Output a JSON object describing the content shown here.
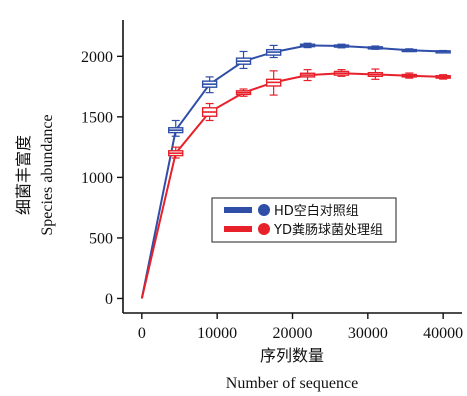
{
  "chart_data": {
    "type": "line",
    "ylabel_cn": "细菌丰富度",
    "ylabel_en": "Species abundance",
    "xlabel_cn": "序列数量",
    "xlabel_en": "Number of sequence",
    "xlim": [
      -2500,
      42500
    ],
    "ylim": [
      -120,
      2300
    ],
    "xticks": [
      0,
      10000,
      20000,
      30000,
      40000
    ],
    "xtick_labels": [
      "0",
      "10000",
      "20000",
      "30000",
      "40000"
    ],
    "yticks": [
      0,
      500,
      1000,
      1500,
      2000
    ],
    "ytick_labels": [
      "0",
      "500",
      "1000",
      "1500",
      "2000"
    ],
    "legend_position": "center-right",
    "series": [
      {
        "name": "HD空白对照组",
        "color": "#2e4ea8",
        "x": [
          0,
          4500,
          9000,
          13500,
          17500,
          22000,
          26500,
          31000,
          35500,
          40000
        ],
        "y": [
          0,
          1390,
          1770,
          1960,
          2035,
          2090,
          2085,
          2070,
          2050,
          2040
        ],
        "box_low": [
          0,
          1370,
          1745,
          1935,
          2010,
          2080,
          2078,
          2063,
          2044,
          2035
        ],
        "box_high": [
          0,
          1410,
          1795,
          1985,
          2055,
          2100,
          2093,
          2078,
          2056,
          2045
        ],
        "whisker_low": [
          0,
          1340,
          1700,
          1900,
          1990,
          2072,
          2070,
          2058,
          2040,
          2032
        ],
        "whisker_high": [
          0,
          1470,
          1830,
          2040,
          2090,
          2108,
          2100,
          2085,
          2062,
          2048
        ]
      },
      {
        "name": "YD粪肠球菌处理组",
        "color": "#e8202a",
        "x": [
          0,
          4500,
          9000,
          13500,
          17500,
          22000,
          26500,
          31000,
          35500,
          40000
        ],
        "y": [
          0,
          1200,
          1540,
          1700,
          1785,
          1845,
          1860,
          1850,
          1840,
          1830
        ],
        "box_low": [
          0,
          1180,
          1505,
          1685,
          1755,
          1830,
          1845,
          1835,
          1830,
          1820
        ],
        "box_high": [
          0,
          1220,
          1575,
          1715,
          1810,
          1860,
          1875,
          1865,
          1850,
          1840
        ],
        "whisker_low": [
          0,
          1160,
          1470,
          1670,
          1680,
          1800,
          1835,
          1810,
          1820,
          1812
        ],
        "whisker_high": [
          0,
          1250,
          1610,
          1730,
          1880,
          1890,
          1890,
          1895,
          1862,
          1848
        ]
      }
    ]
  }
}
